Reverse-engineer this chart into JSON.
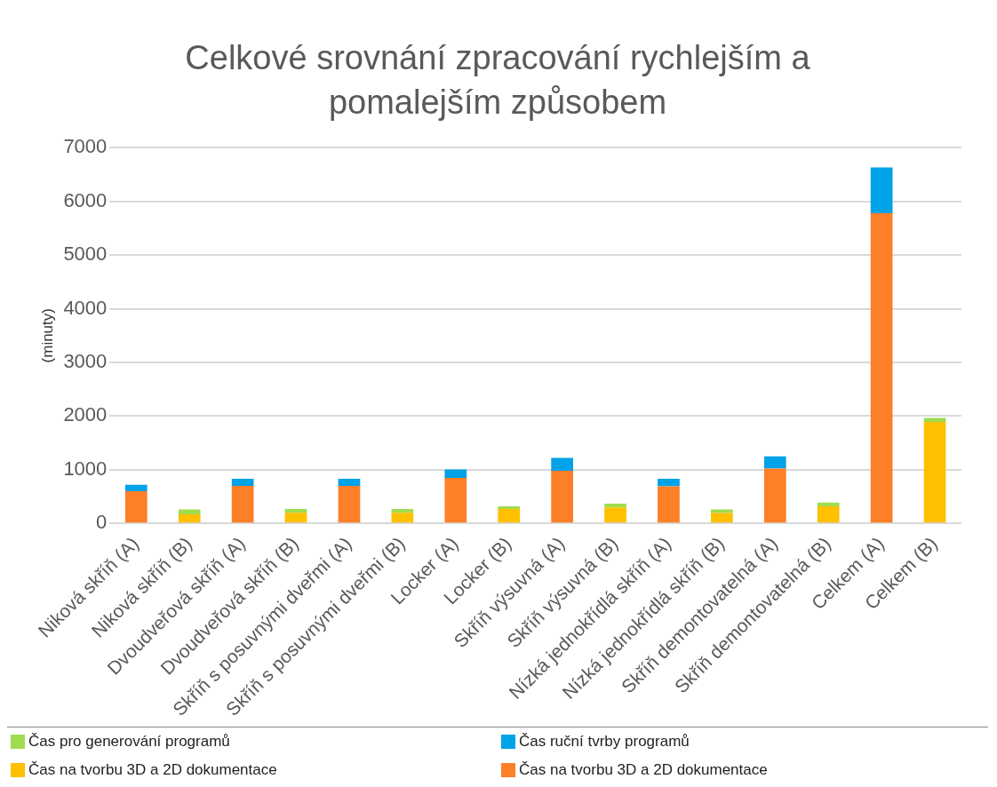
{
  "chart_data": {
    "type": "bar",
    "title": "Celkové srovnání zpracování rychlejším a pomalejším způsobem",
    "ylabel": "(minuty)",
    "categories": [
      "Niková skříň (A)",
      "Niková skříň (B)",
      "Dvoudveřová skříň (A)",
      "Dvoudveřová skříň (B)",
      "Skříň s posuvnými dveřmi (A)",
      "Skříň s posuvnými dveřmi (B)",
      "Locker (A)",
      "Locker (B)",
      "Skříň výsuvná (A)",
      "Skříň výsuvná (B)",
      "Nízká jednokřídlá skříň (A)",
      "Nízká jednokřídlá skříň (B)",
      "Skříň demontovatelná (A)",
      "Skříň demontovatelná (B)",
      "Celkem (A)",
      "Celkem (B)"
    ],
    "stacked": true,
    "series": [
      {
        "name": "Čas na tvorbu 3D a 2D dokumentace",
        "color": "#fd7f27",
        "values": [
          600,
          null,
          700,
          null,
          700,
          null,
          850,
          null,
          980,
          null,
          690,
          null,
          1020,
          null,
          5780,
          null
        ]
      },
      {
        "name": "Čas na tvorbu 3D a 2D dokumentace",
        "color": "#ffc000",
        "values": [
          null,
          170,
          null,
          200,
          null,
          200,
          null,
          270,
          null,
          300,
          null,
          195,
          null,
          320,
          null,
          1890
        ]
      },
      {
        "name": "Čas ruční tvrby programů",
        "color": "#00a2e8",
        "values": [
          120,
          null,
          130,
          null,
          130,
          null,
          155,
          null,
          240,
          null,
          140,
          null,
          230,
          null,
          850,
          null
        ]
      },
      {
        "name": "Čas pro generování programů",
        "color": "#a0dc50",
        "values": [
          null,
          90,
          null,
          70,
          null,
          70,
          null,
          50,
          null,
          70,
          null,
          65,
          null,
          70,
          null,
          75
        ]
      }
    ],
    "ylim": [
      0,
      7000
    ],
    "yticks": [
      0,
      1000,
      2000,
      3000,
      4000,
      5000,
      6000,
      7000
    ],
    "grid": "y",
    "legend": "bottom"
  }
}
